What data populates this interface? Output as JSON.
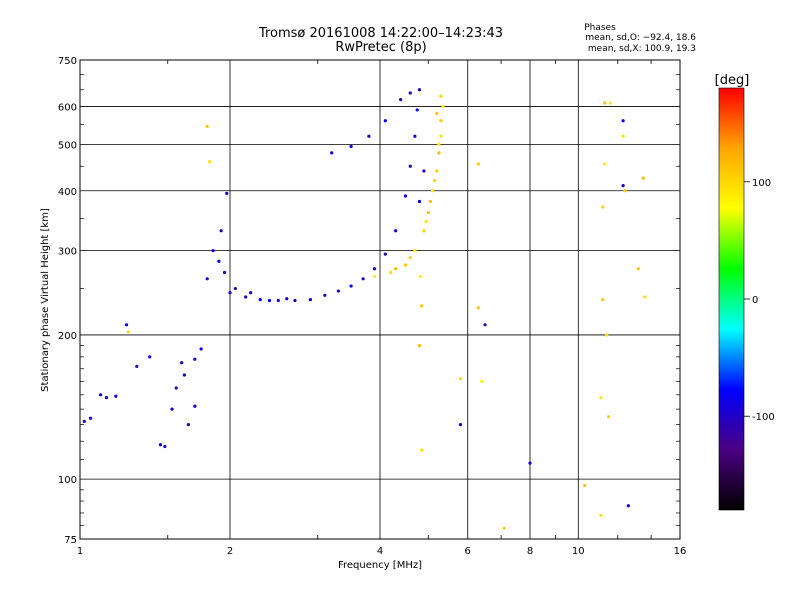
{
  "chart_data": {
    "type": "scatter",
    "title": "Tromsø 20161008 14:22:00–14:23:43",
    "subtitle": "RwPretec (8p)",
    "xlabel": "Frequency [MHz]",
    "ylabel": "Stationary phase Virtual Height [km]",
    "x_scale": "log",
    "y_scale": "log",
    "xlim": [
      1,
      16
    ],
    "ylim": [
      75,
      750
    ],
    "x_ticks": [
      1,
      2,
      4,
      6,
      8,
      10,
      16
    ],
    "y_ticks": [
      75,
      100,
      200,
      300,
      400,
      500,
      600,
      750
    ],
    "grid": true,
    "stats": {
      "header": "Phases",
      "o_line": "mean, sd,O: −92.4, 18.6",
      "x_line": "mean, sd,X: 100.9, 19.3"
    },
    "colorbar": {
      "label": "[deg]",
      "range": [
        -180,
        180
      ],
      "ticks": [
        100,
        0,
        -100
      ],
      "colors": [
        "#000000",
        "#4b0082",
        "#0000ff",
        "#00ffff",
        "#00ff00",
        "#ffff00",
        "#ffa500",
        "#ff0000"
      ]
    },
    "series": [
      {
        "name": "O",
        "phase_mean": -92.4,
        "phase_sd": 18.6,
        "points": [
          [
            1.02,
            132
          ],
          [
            1.05,
            134
          ],
          [
            1.1,
            150
          ],
          [
            1.13,
            148
          ],
          [
            1.18,
            149
          ],
          [
            1.24,
            210
          ],
          [
            1.3,
            172
          ],
          [
            1.38,
            180
          ],
          [
            1.45,
            118
          ],
          [
            1.48,
            117
          ],
          [
            1.53,
            140
          ],
          [
            1.56,
            155
          ],
          [
            1.6,
            175
          ],
          [
            1.62,
            165
          ],
          [
            1.65,
            130
          ],
          [
            1.7,
            178
          ],
          [
            1.75,
            187
          ],
          [
            1.8,
            262
          ],
          [
            1.85,
            300
          ],
          [
            1.9,
            285
          ],
          [
            1.95,
            270
          ],
          [
            2.0,
            245
          ],
          [
            2.05,
            250
          ],
          [
            2.15,
            240
          ],
          [
            2.3,
            237
          ],
          [
            2.5,
            236
          ],
          [
            2.7,
            236
          ],
          [
            2.9,
            237
          ],
          [
            3.1,
            242
          ],
          [
            3.3,
            247
          ],
          [
            3.5,
            253
          ],
          [
            3.7,
            262
          ],
          [
            3.9,
            275
          ],
          [
            4.1,
            295
          ],
          [
            4.3,
            330
          ],
          [
            4.5,
            390
          ],
          [
            4.6,
            450
          ],
          [
            4.7,
            520
          ],
          [
            4.75,
            590
          ],
          [
            4.8,
            650
          ],
          [
            3.2,
            480
          ],
          [
            3.5,
            495
          ],
          [
            3.8,
            520
          ],
          [
            4.1,
            560
          ],
          [
            4.4,
            620
          ],
          [
            4.6,
            640
          ],
          [
            5.8,
            130
          ],
          [
            6.5,
            210
          ],
          [
            8.0,
            108
          ],
          [
            12.3,
            560
          ],
          [
            12.3,
            410
          ],
          [
            12.6,
            88
          ],
          [
            2.4,
            236
          ],
          [
            2.6,
            238
          ],
          [
            2.2,
            245
          ],
          [
            1.92,
            330
          ],
          [
            1.97,
            395
          ],
          [
            1.7,
            142
          ],
          [
            4.9,
            440
          ],
          [
            4.8,
            380
          ]
        ]
      },
      {
        "name": "X",
        "phase_mean": 100.9,
        "phase_sd": 19.3,
        "points": [
          [
            3.9,
            265
          ],
          [
            4.2,
            270
          ],
          [
            4.5,
            280
          ],
          [
            4.7,
            300
          ],
          [
            4.9,
            330
          ],
          [
            5.0,
            360
          ],
          [
            5.1,
            400
          ],
          [
            5.2,
            440
          ],
          [
            5.25,
            480
          ],
          [
            5.3,
            520
          ],
          [
            5.3,
            560
          ],
          [
            5.35,
            600
          ],
          [
            5.3,
            630
          ],
          [
            5.2,
            580
          ],
          [
            5.25,
            500
          ],
          [
            5.15,
            420
          ],
          [
            5.05,
            380
          ],
          [
            4.95,
            345
          ],
          [
            4.6,
            290
          ],
          [
            4.3,
            275
          ],
          [
            1.82,
            460
          ],
          [
            6.3,
            455
          ],
          [
            6.4,
            160
          ],
          [
            5.8,
            162
          ],
          [
            6.3,
            228
          ],
          [
            11.3,
            455
          ],
          [
            11.2,
            370
          ],
          [
            11.3,
            610
          ],
          [
            12.3,
            520
          ],
          [
            12.4,
            400
          ],
          [
            13.5,
            425
          ],
          [
            13.6,
            240
          ],
          [
            13.2,
            275
          ],
          [
            11.6,
            610
          ],
          [
            11.4,
            200
          ],
          [
            11.2,
            237
          ],
          [
            11.1,
            148
          ],
          [
            11.5,
            135
          ],
          [
            10.3,
            97
          ],
          [
            11.1,
            84
          ],
          [
            7.1,
            79
          ],
          [
            4.8,
            190
          ],
          [
            4.85,
            115
          ],
          [
            4.85,
            230
          ],
          [
            4.82,
            265
          ],
          [
            1.25,
            203
          ],
          [
            1.8,
            545
          ]
        ]
      }
    ]
  }
}
